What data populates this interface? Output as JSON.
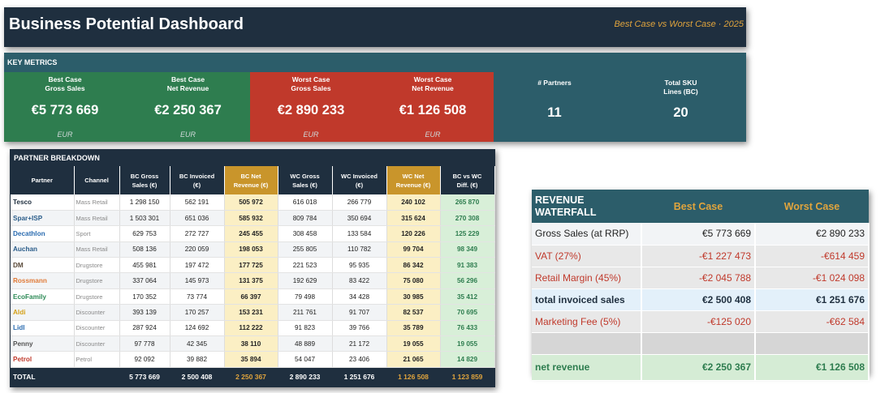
{
  "header": {
    "title": "Business Potential Dashboard",
    "subtitle": "Best Case vs Worst Case · 2025"
  },
  "key_metrics": {
    "label": "KEY METRICS",
    "cards": [
      {
        "label": "Best Case\nGross Sales",
        "value": "€5 773 669",
        "unit": "EUR"
      },
      {
        "label": "Best Case\nNet Revenue",
        "value": "€2 250 367",
        "unit": "EUR"
      },
      {
        "label": "Worst Case\nGross Sales",
        "value": "€2 890 233",
        "unit": "EUR"
      },
      {
        "label": "Worst Case\nNet Revenue",
        "value": "€1 126 508",
        "unit": "EUR"
      },
      {
        "label": "# Partners",
        "value": "11"
      },
      {
        "label": "Total SKU\nLines (BC)",
        "value": "20"
      }
    ]
  },
  "partner_breakdown": {
    "title": "PARTNER BREAKDOWN",
    "headers": [
      "Partner",
      "Channel",
      "BC Gross\nSales (€)",
      "BC Invoiced\n(€)",
      "BC Net\nRevenue (€)",
      "WC Gross\nSales (€)",
      "WC Invoiced\n(€)",
      "WC Net\nRevenue (€)",
      "BC vs WC\nDiff. (€)"
    ],
    "rows": [
      {
        "partner": "Tesco",
        "color": "#1f2f3f",
        "channel": "Mass Retail",
        "v": [
          "1 298 150",
          "562 191",
          "505 972",
          "616 018",
          "266 779",
          "240 102",
          "265 870"
        ]
      },
      {
        "partner": "Spar+ISP",
        "color": "#2b5d8a",
        "channel": "Mass Retail",
        "v": [
          "1 503 301",
          "651 036",
          "585 932",
          "809 784",
          "350 694",
          "315 624",
          "270 308"
        ]
      },
      {
        "partner": "Decathlon",
        "color": "#2b6cb0",
        "channel": "Sport",
        "v": [
          "629 753",
          "272 727",
          "245 455",
          "308 458",
          "133 584",
          "120 226",
          "125 229"
        ]
      },
      {
        "partner": "Auchan",
        "color": "#2b5d8a",
        "channel": "Mass Retail",
        "v": [
          "508 136",
          "220 059",
          "198 053",
          "255 805",
          "110 782",
          "99 704",
          "98 349"
        ]
      },
      {
        "partner": "DM",
        "color": "#5a4a3a",
        "channel": "Drugstore",
        "v": [
          "455 981",
          "197 472",
          "177 725",
          "221 523",
          "95 935",
          "86 342",
          "91 383"
        ]
      },
      {
        "partner": "Rossmann",
        "color": "#e07b39",
        "channel": "Drugstore",
        "v": [
          "337 064",
          "145 973",
          "131 375",
          "192 629",
          "83 422",
          "75 080",
          "56 296"
        ]
      },
      {
        "partner": "EcoFamily",
        "color": "#2e8b57",
        "channel": "Drugstore",
        "v": [
          "170 352",
          "73 774",
          "66 397",
          "79 498",
          "34 428",
          "30 985",
          "35 412"
        ]
      },
      {
        "partner": "Aldi",
        "color": "#d4a017",
        "channel": "Discounter",
        "v": [
          "393 139",
          "170 257",
          "153 231",
          "211 761",
          "91 707",
          "82 537",
          "70 695"
        ]
      },
      {
        "partner": "Lidl",
        "color": "#2b6cb0",
        "channel": "Discounter",
        "v": [
          "287 924",
          "124 692",
          "112 222",
          "91 823",
          "39 766",
          "35 789",
          "76 433"
        ]
      },
      {
        "partner": "Penny",
        "color": "#555555",
        "channel": "Discounter",
        "v": [
          "97 778",
          "42 345",
          "38 110",
          "48 889",
          "21 172",
          "19 055",
          "19 055"
        ]
      },
      {
        "partner": "Petrol",
        "color": "#c0392b",
        "channel": "Petrol",
        "v": [
          "92 092",
          "39 882",
          "35 894",
          "54 047",
          "23 406",
          "21 065",
          "14 829"
        ]
      }
    ],
    "total": {
      "label": "TOTAL",
      "v": [
        "5 773 669",
        "2 500 408",
        "2 250 367",
        "2 890 233",
        "1 251 676",
        "1 126 508",
        "1 123 859"
      ]
    }
  },
  "revenue_waterfall": {
    "title": "REVENUE\nWATERFALL",
    "col_best": "Best Case",
    "col_worst": "Worst Case",
    "rows": [
      {
        "label": "Gross Sales (at RRP)",
        "best": "€5 773 669",
        "worst": "€2 890 233",
        "style": "gross"
      },
      {
        "label": " VAT (27%)",
        "best": "-€1 227 473",
        "worst": "-€614 459",
        "style": "neg"
      },
      {
        "label": "Retail Margin (45%)",
        "best": "-€2 045 788",
        "worst": "-€1 024 098",
        "style": "neg"
      },
      {
        "label": "total invoiced sales",
        "best": "€2 500 408",
        "worst": "€1 251 676",
        "style": "inv"
      },
      {
        "label": "Marketing Fee (5%)",
        "best": "-€125 020",
        "worst": "-€62 584",
        "style": "neg"
      },
      {
        "label": "",
        "best": "",
        "worst": "",
        "style": "blank"
      },
      {
        "label": "net revenue",
        "best": "€2 250 367",
        "worst": "€1 126 508",
        "style": "net"
      }
    ]
  }
}
